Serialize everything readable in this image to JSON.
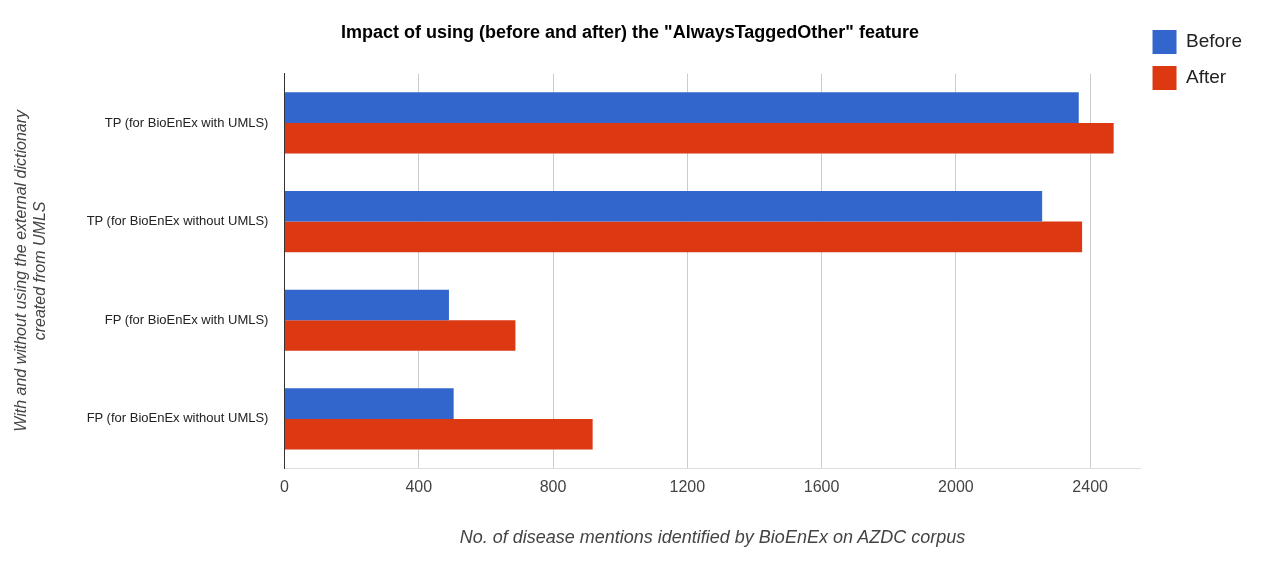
{
  "chart_data": {
    "type": "bar",
    "orientation": "horizontal",
    "title": "Impact of using (before and after) the \"AlwaysTaggedOther\" feature",
    "xlabel": "No. of disease mentions identified by BioEnEx on AZDC corpus",
    "ylabel": "With and without using the external dictionary\ncreated from UMLS",
    "categories": [
      "TP (for BioEnEx with UMLS)",
      "TP (for BioEnEx without UMLS)",
      "FP (for BioEnEx with UMLS)",
      "FP (for BioEnEx without UMLS)"
    ],
    "series": [
      {
        "name": "Before",
        "color": "#3366cc",
        "values": [
          2366,
          2257,
          490,
          504
        ]
      },
      {
        "name": "After",
        "color": "#dc3912",
        "values": [
          2470,
          2376,
          688,
          918
        ]
      }
    ],
    "xlim": [
      0,
      2550
    ],
    "xticks": [
      0,
      400,
      800,
      1200,
      1600,
      2000,
      2400
    ],
    "grid": "x",
    "legend": "top right"
  }
}
